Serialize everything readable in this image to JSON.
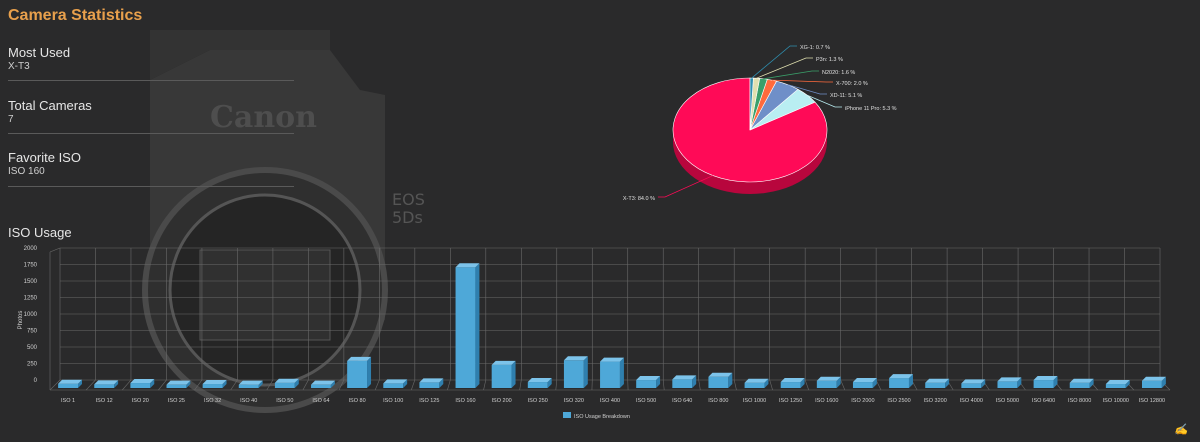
{
  "page": {
    "title": "Camera Statistics",
    "bg_logo_text": "Canon",
    "bg_model_line1": "EOS",
    "bg_model_line2": "5Ds"
  },
  "stats": [
    {
      "label": "Most Used",
      "value": "X-T3"
    },
    {
      "label": "Total Cameras",
      "value": "7"
    },
    {
      "label": "Favorite ISO",
      "value": "ISO 160"
    }
  ],
  "iso_section": {
    "title": "ISO Usage"
  },
  "colors": {
    "title": "#e8a04c",
    "bar": "#4ea8d8",
    "pie_main": "#ff0a57",
    "grid": "#6a6a6a"
  },
  "chart_data": [
    {
      "type": "pie",
      "slices": [
        {
          "name": "X-T3",
          "value": 84.0,
          "label": "X-T3: 84.0 %",
          "color": "#ff0a57"
        },
        {
          "name": "iPhone 11 Pro",
          "value": 5.3,
          "label": "iPhone 11 Pro: 5.3 %",
          "color": "#b9eef2"
        },
        {
          "name": "XD-11",
          "value": 5.1,
          "label": "XD-11: 5.1 %",
          "color": "#6f8fc8"
        },
        {
          "name": "X-700",
          "value": 2.0,
          "label": "X-700: 2.0 %",
          "color": "#ff6a3d"
        },
        {
          "name": "N2020",
          "value": 1.6,
          "label": "N2020: 1.6 %",
          "color": "#3aa06a"
        },
        {
          "name": "P3n",
          "value": 1.3,
          "label": "P3n: 1.3 %",
          "color": "#e0e0b0"
        },
        {
          "name": "XG-1",
          "value": 0.7,
          "label": "XG-1: 0.7 %",
          "color": "#2f8fb0"
        }
      ]
    },
    {
      "type": "bar",
      "ylabel": "Photos",
      "legend": "ISO Usage Breakdown",
      "legend_position": "bottom-center",
      "ylim": [
        0,
        2000
      ],
      "yticks": [
        0,
        250,
        500,
        750,
        1000,
        1250,
        1500,
        1750,
        2000
      ],
      "grid": true,
      "categories": [
        "ISO 1",
        "ISO 12",
        "ISO 20",
        "ISO 25",
        "ISO 32",
        "ISO 40",
        "ISO 50",
        "ISO 64",
        "ISO 80",
        "ISO 100",
        "ISO 125",
        "ISO 160",
        "ISO 200",
        "ISO 250",
        "ISO 320",
        "ISO 400",
        "ISO 500",
        "ISO 640",
        "ISO 800",
        "ISO 1000",
        "ISO 1250",
        "ISO 1600",
        "ISO 2000",
        "ISO 2500",
        "ISO 3200",
        "ISO 4000",
        "ISO 5000",
        "ISO 6400",
        "ISO 8000",
        "ISO 10000",
        "ISO 12800"
      ],
      "values": [
        35,
        25,
        45,
        20,
        30,
        20,
        50,
        20,
        380,
        40,
        55,
        1800,
        320,
        60,
        390,
        370,
        90,
        100,
        140,
        50,
        60,
        80,
        60,
        120,
        50,
        40,
        70,
        90,
        50,
        30,
        80
      ]
    }
  ]
}
